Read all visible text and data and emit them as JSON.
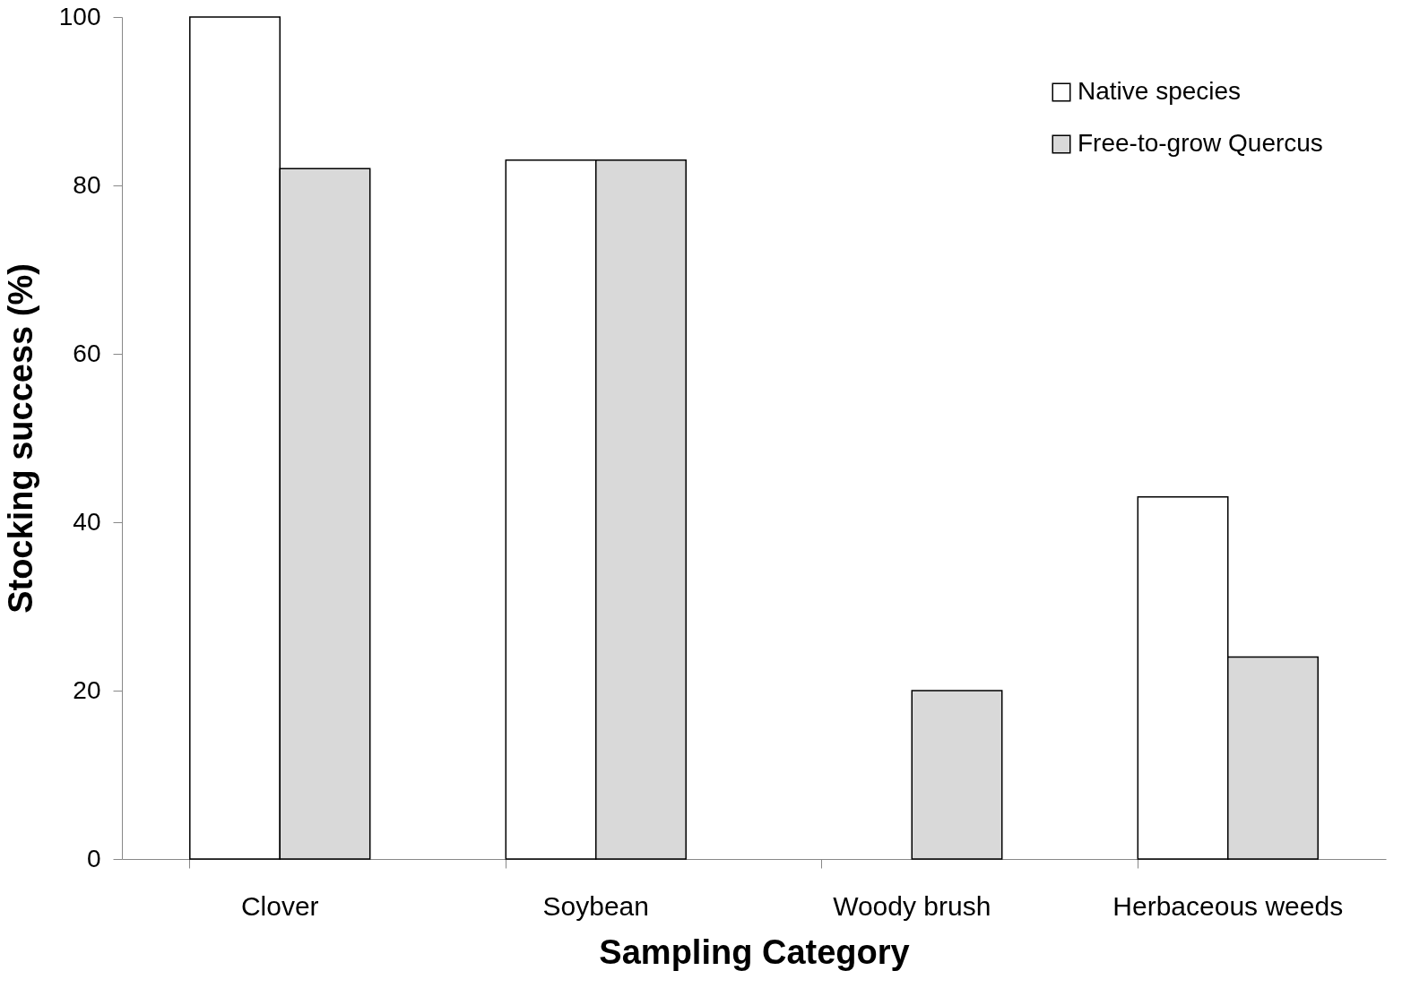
{
  "chart_data": {
    "type": "bar",
    "xlabel": "Sampling Category",
    "ylabel": "Stocking success (%)",
    "categories": [
      "Clover",
      "Soybean",
      "Woody brush",
      "Herbaceous weeds"
    ],
    "series": [
      {
        "name": "Native species",
        "color": "#ffffff",
        "values": [
          100,
          83,
          null,
          43
        ]
      },
      {
        "name": "Free-to-grow Quercus",
        "color": "#d9d9d9",
        "values": [
          82,
          83,
          20,
          24
        ]
      }
    ],
    "ylim": [
      0,
      100
    ],
    "yticks": [
      0,
      20,
      40,
      60,
      80,
      100
    ],
    "grid": false,
    "legend": "top right"
  }
}
